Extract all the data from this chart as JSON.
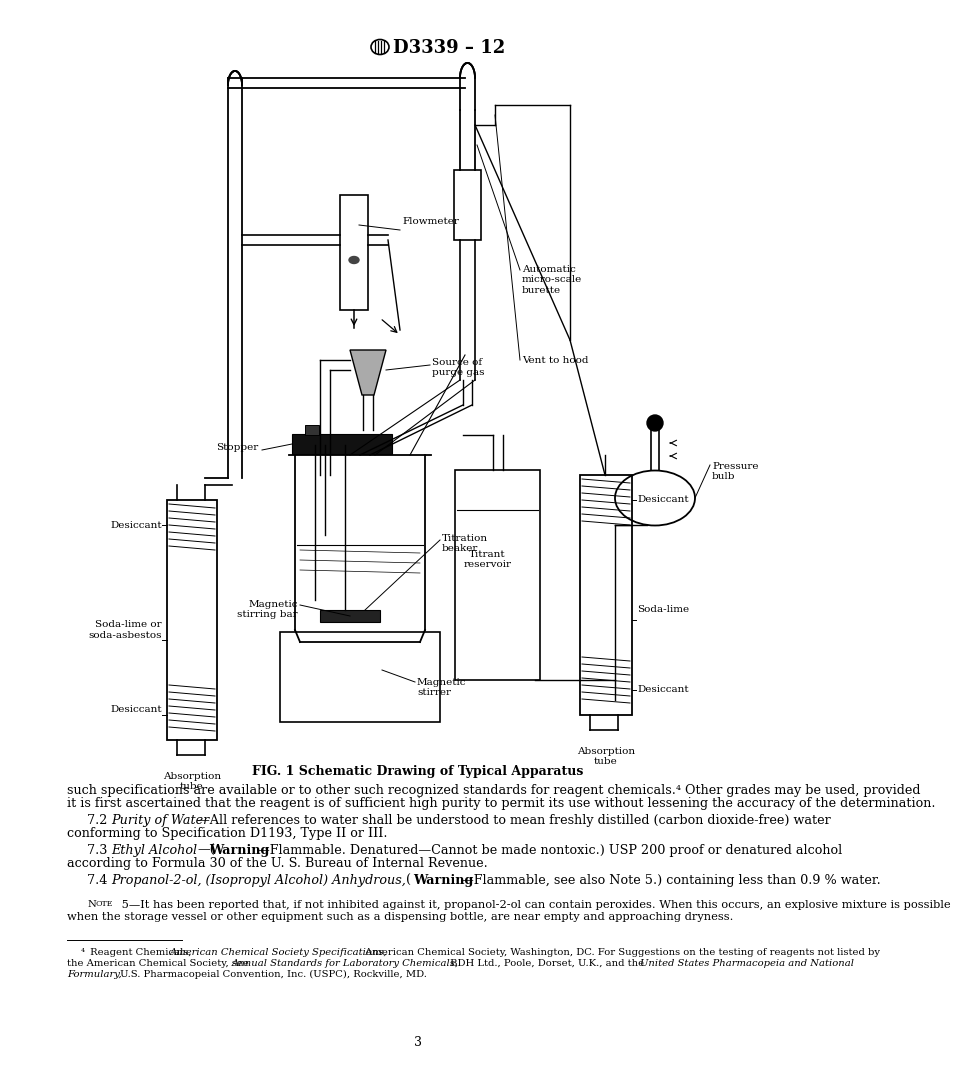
{
  "header": "D3339 – 12",
  "fig_caption": "FIG. 1 Schematic Drawing of Typical Apparatus",
  "page_number": "3",
  "bg_color": "#ffffff",
  "text_color": "#000000",
  "diagram_labels": {
    "flowmeter": "Flowmeter",
    "auto_burette": "Automatic\nmicro-scale\nburette",
    "vent": "Vent to hood",
    "source_purge": "Source of\npurge gas",
    "stopper": "Stopper",
    "titration_beaker": "Titration\nbeaker",
    "magnetic_bar": "Magnetic\nstirring bar",
    "magnetic_stirrer": "Magnetic\nstirrer",
    "titrant_reservoir": "Titrant\nreservoir",
    "pressure_bulb": "Pressure\nbulb",
    "desiccant_left_top": "Desiccant",
    "soda_lime_left": "Soda-lime or\nsoda-asbestos",
    "desiccant_left_bot": "Desiccant",
    "absorption_tube_left": "Absorption\ntube",
    "desiccant_right_top": "Desiccant",
    "soda_lime_right": "Soda-lime",
    "desiccant_right_bot": "Desiccant",
    "absorption_tube_right": "Absorption\ntube"
  },
  "body_lines": [
    "such specifications are available or to other such recognized standards for reagent chemicals.⁴ Other grades may be used, provided",
    "it is first ascertained that the reagent is of sufficient high purity to permit its use without lessening the accuracy of the determination.",
    "    7.2 —All references to water shall be understood to mean freshly distilled (carbon dioxide-free) water",
    "conforming to Specification D1193, Type II or III.",
    "    7.3 —( —Flammable. Denatured—Cannot be made nontoxic.) USP 200 proof or denatured alcohol",
    "according to Formula 30 of the U. S. Bureau of Internal Revenue.",
    "    7.4 , , ( —Flammable, see also Note 5.) containing less than 0.9 % water."
  ],
  "note_lines": [
    "   Nᴏᴛᴇ 5—It has been reported that, if not inhibited against it, propanol-2-ol can contain peroxides. When this occurs, an explosive mixture is possible",
    "when the storage vessel or other equipment such as a dispensing bottle, are near empty and approaching dryness."
  ],
  "footnote_lines": [
    "   ⁴ Reagent Chemicals, American Chemical Society Specifications, American Chemical Society, Washington, DC. For Suggestions on the testing of reagents not listed by",
    "the American Chemical Society, see Annual Standards for Laboratory Chemicals, BDH Ltd., Poole, Dorset, U.K., and the United States Pharmacopeia and National",
    "Formulary, U.S. Pharmacopeial Convention, Inc. (USPC), Rockville, MD."
  ],
  "font_size_body": 9.2,
  "font_size_caption": 9.0,
  "font_size_header": 13,
  "font_size_footnote": 7.2,
  "font_size_note": 8.2,
  "font_size_label": 7.5,
  "font_size_page": 9.0
}
